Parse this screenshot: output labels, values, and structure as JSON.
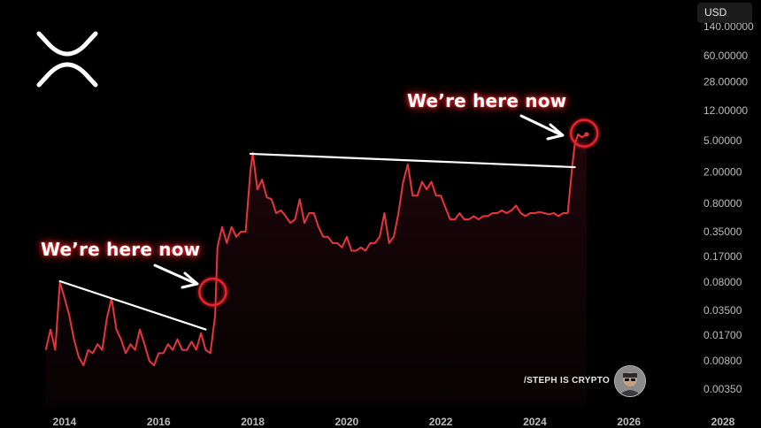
{
  "currency_button": "USD",
  "logo_icon": "xrp-logo-icon",
  "annotations": [
    {
      "text": "We’re here now"
    },
    {
      "text": "We’re here now"
    }
  ],
  "watermark": "/STEPH IS CRYPTO",
  "colors": {
    "background": "#000000",
    "line": "#e8343c",
    "fill": "#2a0a0e",
    "trendline": "#ffffff",
    "circle": "#e8242c",
    "glow": "#e8242c"
  },
  "chart_data": {
    "type": "line",
    "title": "",
    "xlabel": "",
    "ylabel": "",
    "y_scale": "log",
    "grid": false,
    "x_ticks": [
      "2014",
      "2016",
      "2018",
      "2020",
      "2022",
      "2024",
      "2026",
      "2028"
    ],
    "y_ticks": [
      "140.00000",
      "60.00000",
      "28.00000",
      "12.00000",
      "5.00000",
      "2.00000",
      "0.80000",
      "0.35000",
      "0.17000",
      "0.08000",
      "0.03500",
      "0.01700",
      "0.00800",
      "0.00350"
    ],
    "x": [
      2013.6,
      2013.7,
      2013.8,
      2013.9,
      2014.0,
      2014.1,
      2014.2,
      2014.3,
      2014.4,
      2014.5,
      2014.6,
      2014.7,
      2014.8,
      2014.9,
      2015.0,
      2015.1,
      2015.2,
      2015.3,
      2015.4,
      2015.5,
      2015.6,
      2015.7,
      2015.8,
      2015.9,
      2016.0,
      2016.1,
      2016.2,
      2016.3,
      2016.4,
      2016.5,
      2016.6,
      2016.7,
      2016.8,
      2016.9,
      2017.0,
      2017.1,
      2017.2,
      2017.25,
      2017.35,
      2017.45,
      2017.55,
      2017.65,
      2017.75,
      2017.85,
      2017.95,
      2018.0,
      2018.1,
      2018.2,
      2018.3,
      2018.4,
      2018.5,
      2018.6,
      2018.7,
      2018.8,
      2018.9,
      2019.0,
      2019.1,
      2019.2,
      2019.3,
      2019.4,
      2019.5,
      2019.6,
      2019.7,
      2019.8,
      2019.9,
      2020.0,
      2020.1,
      2020.2,
      2020.3,
      2020.4,
      2020.5,
      2020.6,
      2020.7,
      2020.8,
      2020.9,
      2021.0,
      2021.1,
      2021.2,
      2021.3,
      2021.4,
      2021.5,
      2021.6,
      2021.7,
      2021.8,
      2021.9,
      2022.0,
      2022.1,
      2022.2,
      2022.3,
      2022.4,
      2022.5,
      2022.6,
      2022.7,
      2022.8,
      2022.9,
      2023.0,
      2023.1,
      2023.2,
      2023.3,
      2023.4,
      2023.5,
      2023.6,
      2023.7,
      2023.8,
      2023.9,
      2024.0,
      2024.1,
      2024.2,
      2024.3,
      2024.4,
      2024.5,
      2024.6,
      2024.7,
      2024.8,
      2024.85,
      2024.92,
      2025.0,
      2025.1
    ],
    "series": [
      {
        "values": [
          0.011,
          0.02,
          0.011,
          0.08,
          0.05,
          0.03,
          0.015,
          0.009,
          0.007,
          0.011,
          0.01,
          0.013,
          0.011,
          0.028,
          0.05,
          0.02,
          0.015,
          0.01,
          0.013,
          0.011,
          0.02,
          0.013,
          0.008,
          0.007,
          0.01,
          0.01,
          0.013,
          0.011,
          0.015,
          0.011,
          0.011,
          0.014,
          0.011,
          0.018,
          0.011,
          0.01,
          0.03,
          0.22,
          0.4,
          0.25,
          0.4,
          0.3,
          0.35,
          0.35,
          2.0,
          3.5,
          1.2,
          1.6,
          0.95,
          0.9,
          0.6,
          0.65,
          0.55,
          0.45,
          0.5,
          0.9,
          0.45,
          0.6,
          0.6,
          0.4,
          0.3,
          0.3,
          0.25,
          0.25,
          0.22,
          0.3,
          0.2,
          0.2,
          0.22,
          0.2,
          0.25,
          0.25,
          0.3,
          0.6,
          0.25,
          0.3,
          0.6,
          1.5,
          2.5,
          1.0,
          1.0,
          1.5,
          1.2,
          1.5,
          1.0,
          1.0,
          0.7,
          0.5,
          0.5,
          0.6,
          0.5,
          0.5,
          0.55,
          0.5,
          0.55,
          0.55,
          0.6,
          0.6,
          0.65,
          0.6,
          0.65,
          0.75,
          0.6,
          0.55,
          0.6,
          0.6,
          0.62,
          0.6,
          0.58,
          0.6,
          0.55,
          0.6,
          0.6,
          2.5,
          4.5,
          6.0,
          5.5,
          6.0
        ]
      }
    ],
    "trendlines": [
      {
        "x": [
          2013.9,
          2017.0
        ],
        "y": [
          0.082,
          0.02
        ]
      },
      {
        "x": [
          2017.95,
          2024.85
        ],
        "y": [
          3.4,
          2.3
        ]
      }
    ],
    "markers": [
      2017.15,
      2025.05
    ]
  }
}
